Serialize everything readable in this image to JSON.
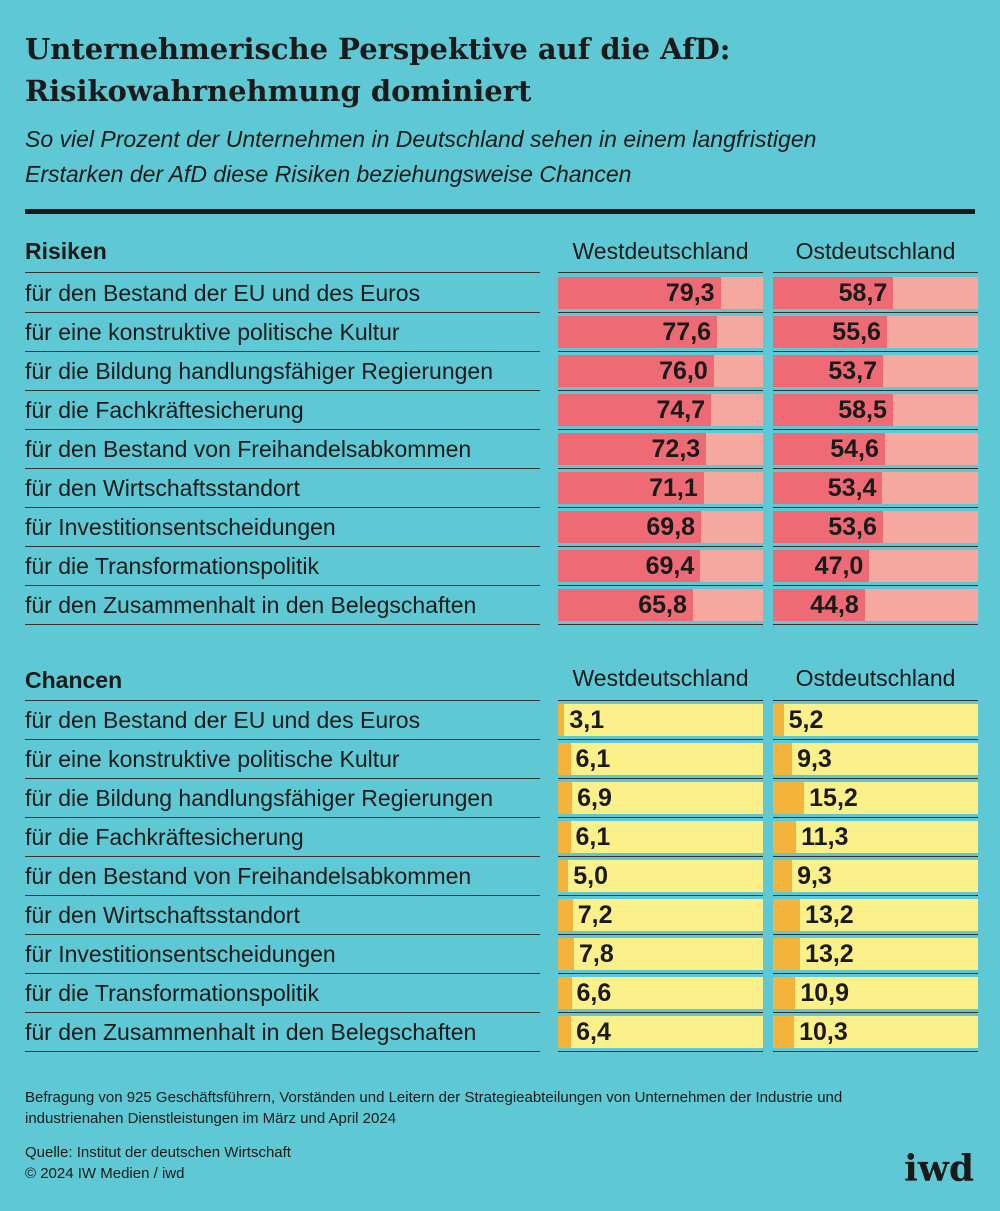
{
  "title_line1": "Unternehmerische Perspektive auf die AfD:",
  "title_line2": "Risikowahrnehmung dominiert",
  "subtitle_line1": "So viel Prozent der Unternehmen in Deutschland sehen in einem langfristigen",
  "subtitle_line2": "Erstarken der AfD diese Risiken beziehungsweise Chancen",
  "columns": {
    "west": "Westdeutschland",
    "east": "Ostdeutschland"
  },
  "colors": {
    "background": "#5ec9d4",
    "risk_bar": "#ee6a74",
    "risk_bg": "#f5a8a0",
    "chance_bar": "#f4b43c",
    "chance_bg": "#fbf08a"
  },
  "chart_data": [
    {
      "type": "bar",
      "title": "Risiken",
      "unit": "Prozent",
      "xlim": [
        0,
        100
      ],
      "categories": [
        "für den Bestand der EU und des Euros",
        "für eine konstruktive politische Kultur",
        "für die Bildung handlungsfähiger Regierungen",
        "für die Fachkräftesicherung",
        "für den Bestand von Freihandelsabkommen",
        "für den Wirtschaftsstandort",
        "für Investitionsentscheidungen",
        "für die Transformationspolitik",
        "für den Zusammenhalt in den Belegschaften"
      ],
      "series": [
        {
          "name": "Westdeutschland",
          "values": [
            79.3,
            77.6,
            76.0,
            74.7,
            72.3,
            71.1,
            69.8,
            69.4,
            65.8
          ],
          "labels": [
            "79,3",
            "77,6",
            "76,0",
            "74,7",
            "72,3",
            "71,1",
            "69,8",
            "69,4",
            "65,8"
          ]
        },
        {
          "name": "Ostdeutschland",
          "values": [
            58.7,
            55.6,
            53.7,
            58.5,
            54.6,
            53.4,
            53.6,
            47.0,
            44.8
          ],
          "labels": [
            "58,7",
            "55,6",
            "53,7",
            "58,5",
            "54,6",
            "53,4",
            "53,6",
            "47,0",
            "44,8"
          ]
        }
      ]
    },
    {
      "type": "bar",
      "title": "Chancen",
      "unit": "Prozent",
      "xlim": [
        0,
        100
      ],
      "categories": [
        "für den Bestand der EU und des Euros",
        "für eine konstruktive politische Kultur",
        "für die Bildung handlungsfähiger Regierungen",
        "für die Fachkräftesicherung",
        "für den Bestand von Freihandelsabkommen",
        "für den Wirtschaftsstandort",
        "für Investitionsentscheidungen",
        "für die Transformationspolitik",
        "für den Zusammenhalt in den Belegschaften"
      ],
      "series": [
        {
          "name": "Westdeutschland",
          "values": [
            3.1,
            6.1,
            6.9,
            6.1,
            5.0,
            7.2,
            7.8,
            6.6,
            6.4
          ],
          "labels": [
            "3,1",
            "6,1",
            "6,9",
            "6,1",
            "5,0",
            "7,2",
            "7,8",
            "6,6",
            "6,4"
          ]
        },
        {
          "name": "Ostdeutschland",
          "values": [
            5.2,
            9.3,
            15.2,
            11.3,
            9.3,
            13.2,
            13.2,
            10.9,
            10.3
          ],
          "labels": [
            "5,2",
            "9,3",
            "15,2",
            "11,3",
            "9,3",
            "13,2",
            "13,2",
            "10,9",
            "10,3"
          ]
        }
      ]
    }
  ],
  "footnote_line1": "Befragung von 925 Geschäftsführern, Vorständen und Leitern der Strategieabteilungen von Unternehmen der Industrie und",
  "footnote_line2": "industrienahen Dienstleistungen im März und April 2024",
  "source": "Quelle: Institut der deutschen Wirtschaft",
  "copyright": "© 2024 IW Medien / iwd",
  "logo": "iwd"
}
